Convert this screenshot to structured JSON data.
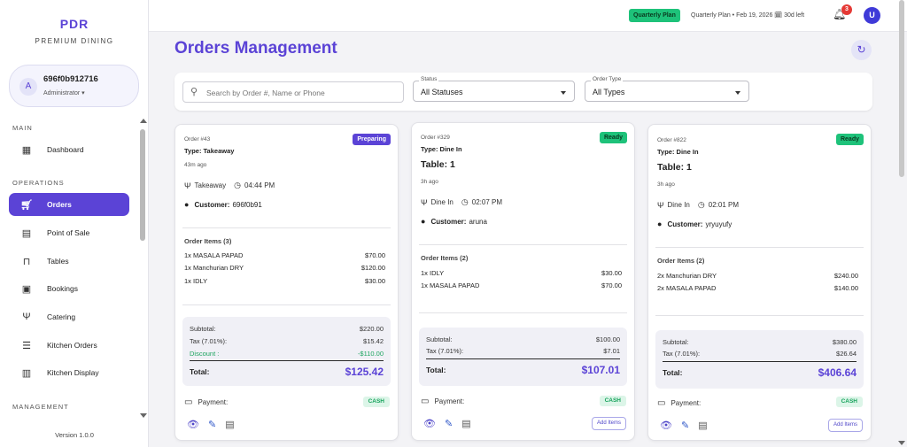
{
  "sidebar": {
    "brand": "PDR",
    "brand_sub": "PREMIUM DINING",
    "user": {
      "avatar": "A",
      "name": "696f0b912716",
      "role": "Administrator ▾"
    },
    "sections": {
      "main": "MAIN",
      "operations": "OPERATIONS",
      "management": "MANAGEMENT"
    },
    "items": [
      {
        "label": "Dashboard",
        "icon": "dashboard-icon"
      },
      {
        "label": "Orders",
        "icon": "cart-icon"
      },
      {
        "label": "Point of Sale",
        "icon": "register-icon"
      },
      {
        "label": "Tables",
        "icon": "table-icon"
      },
      {
        "label": "Bookings",
        "icon": "calendar-icon"
      },
      {
        "label": "Catering",
        "icon": "fork-knife-icon"
      },
      {
        "label": "Kitchen Orders",
        "icon": "list-icon"
      },
      {
        "label": "Kitchen Display",
        "icon": "display-icon"
      }
    ],
    "version": "Version 1.0.0"
  },
  "topbar": {
    "plan_badge": "Quarterly Plan",
    "plan_text": "Quarterly Plan • Feb 19, 2026 🗓 30d left",
    "notifications": "3",
    "avatar": "U"
  },
  "page": {
    "title": "Orders Management",
    "search_placeholder": "Search by Order #, Name or Phone",
    "status_caption": "Status",
    "status_value": "All Statuses",
    "type_caption": "Order Type",
    "type_value": "All Types"
  },
  "orders": [
    {
      "order_no": "Order #43",
      "type": "Type: Takeaway",
      "time_ago": "43m ago",
      "status": "Preparing",
      "service": "Takeaway",
      "time": "04:44 PM",
      "customer_label": "Customer:",
      "customer": "696f0b91",
      "items_head": "Order Items (3)",
      "items": [
        {
          "name": "1x MASALA PAPAD",
          "price": "$70.00"
        },
        {
          "name": "1x Manchurian DRY",
          "price": "$120.00"
        },
        {
          "name": "1x IDLY",
          "price": "$30.00"
        }
      ],
      "subtotal_label": "Subtotal:",
      "subtotal": "$220.00",
      "tax_label": "Tax (7.01%):",
      "tax": "$15.42",
      "discount_label": "Discount :",
      "discount": "-$110.00",
      "total_label": "Total:",
      "total": "$125.42",
      "payment_label": "Payment:",
      "payment": "CASH"
    },
    {
      "order_no": "Order #329",
      "type": "Type: Dine In",
      "table": "Table: 1",
      "time_ago": "3h ago",
      "status": "Ready",
      "service": "Dine In",
      "time": "02:07 PM",
      "customer_label": "Customer:",
      "customer": "aruna",
      "items_head": "Order Items (2)",
      "items": [
        {
          "name": "1x IDLY",
          "price": "$30.00"
        },
        {
          "name": "1x MASALA PAPAD",
          "price": "$70.00"
        }
      ],
      "subtotal_label": "Subtotal:",
      "subtotal": "$100.00",
      "tax_label": "Tax (7.01%):",
      "tax": "$7.01",
      "total_label": "Total:",
      "total": "$107.01",
      "payment_label": "Payment:",
      "payment": "CASH",
      "add_items": "Add Items"
    },
    {
      "order_no": "Order #822",
      "type": "Type: Dine In",
      "table": "Table: 1",
      "time_ago": "3h ago",
      "status": "Ready",
      "service": "Dine In",
      "time": "02:01 PM",
      "customer_label": "Customer:",
      "customer": "yryuyufy",
      "items_head": "Order Items (2)",
      "items": [
        {
          "name": "2x Manchurian DRY",
          "price": "$240.00"
        },
        {
          "name": "2x MASALA PAPAD",
          "price": "$140.00"
        }
      ],
      "subtotal_label": "Subtotal:",
      "subtotal": "$380.00",
      "tax_label": "Tax (7.01%):",
      "tax": "$26.64",
      "total_label": "Total:",
      "total": "$406.64",
      "payment_label": "Payment:",
      "payment": "CASH",
      "add_items": "Add Items"
    }
  ],
  "colors": {
    "accent": "#5b43d6",
    "ready": "#1ec27a",
    "discount": "#1ea560",
    "notification": "#e53935"
  }
}
